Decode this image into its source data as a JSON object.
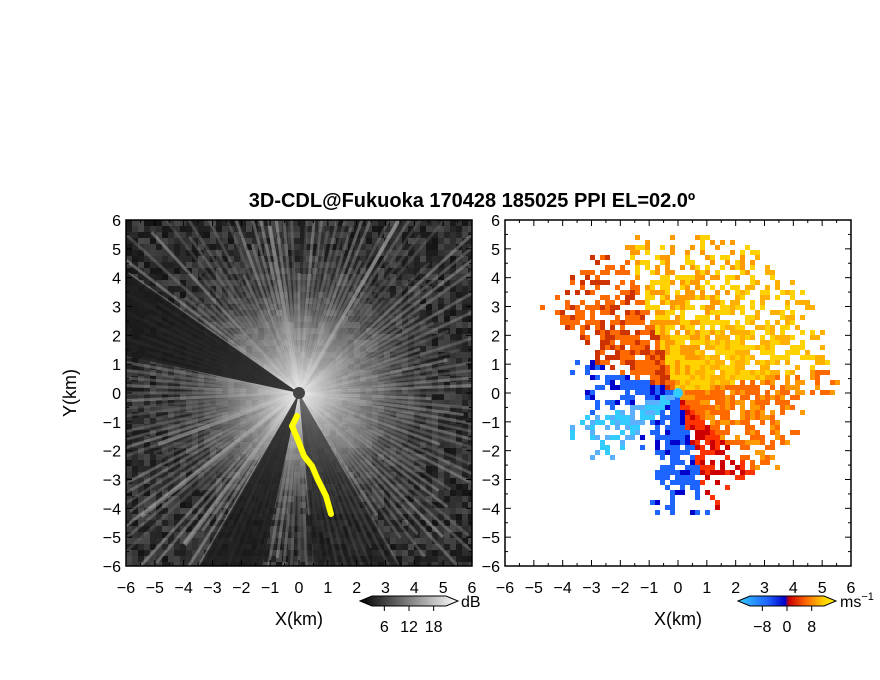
{
  "title": "3D-CDL@Fukuoka 170428 185025 PPI EL=02.0º",
  "chart_data": [
    {
      "type": "heatmap",
      "name": "reflectivity",
      "xlabel": "X(km)",
      "ylabel": "Y(km)",
      "xlim": [
        -6,
        6
      ],
      "ylim": [
        -6,
        6
      ],
      "xticks": [
        "-6",
        "-5",
        "-4",
        "-3",
        "-2",
        "-1",
        "0",
        "1",
        "2",
        "3",
        "4",
        "5",
        "6"
      ],
      "yticks": [
        "6",
        "5",
        "4",
        "3",
        "2",
        "1",
        "0",
        "-1",
        "-2",
        "-3",
        "-4",
        "-5",
        "-6"
      ],
      "colorbar": {
        "unit": "dB",
        "ticks": [
          "6",
          "12",
          "18"
        ],
        "range": [
          3,
          21
        ],
        "colormap": "gray"
      },
      "highlight_color": "#ffff00"
    },
    {
      "type": "heatmap",
      "name": "doppler_velocity",
      "xlabel": "X(km)",
      "xlim": [
        -6,
        6
      ],
      "ylim": [
        -6,
        6
      ],
      "xticks": [
        "-6",
        "-5",
        "-4",
        "-3",
        "-2",
        "-1",
        "0",
        "1",
        "2",
        "3",
        "4",
        "5",
        "6"
      ],
      "yticks": [
        "6",
        "5",
        "4",
        "3",
        "2",
        "1",
        "0",
        "-1",
        "-2",
        "-3",
        "-4",
        "-5",
        "-6"
      ],
      "colorbar": {
        "unit": "ms",
        "unit_exponent": "−1",
        "ticks": [
          "-8",
          "0",
          "8"
        ],
        "range": [
          -12,
          12
        ],
        "colormap": [
          "#33ccff",
          "#1e64ff",
          "#0000cc",
          "#cc0000",
          "#ff6a00",
          "#ffd200",
          "#fff200"
        ]
      }
    }
  ]
}
